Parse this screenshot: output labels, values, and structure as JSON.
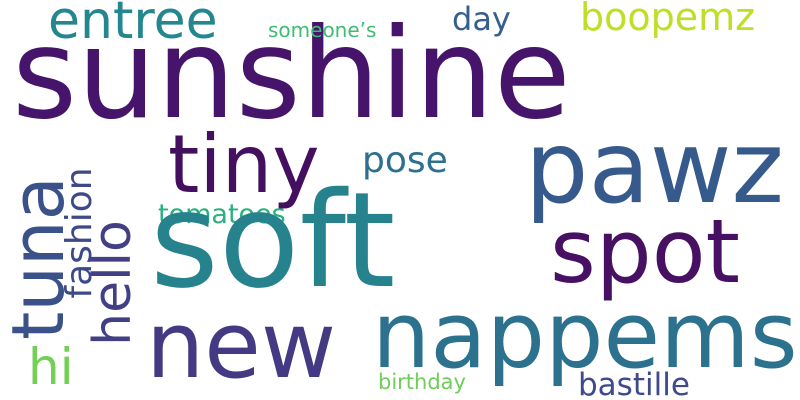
{
  "wordcloud": {
    "words": {
      "sunshine": {
        "text": "sunshine",
        "color": "#46146a"
      },
      "soft": {
        "text": "soft",
        "color": "#26838e"
      },
      "pawz": {
        "text": "pawz",
        "color": "#375a8c"
      },
      "new": {
        "text": "new",
        "color": "#433a83"
      },
      "nappems": {
        "text": "nappems",
        "color": "#2c718e"
      },
      "spot": {
        "text": "spot",
        "color": "#471063"
      },
      "tiny": {
        "text": "tiny",
        "color": "#430f5e"
      },
      "tuna": {
        "text": "tuna",
        "color": "#3b5189"
      },
      "entree": {
        "text": "entree",
        "color": "#24868e"
      },
      "boopemz": {
        "text": "boopemz",
        "color": "#bddf26"
      },
      "day": {
        "text": "day",
        "color": "#35608d"
      },
      "pose": {
        "text": "pose",
        "color": "#2d6f8e"
      },
      "fashion": {
        "text": "fashion",
        "color": "#3e4989"
      },
      "hello": {
        "text": "hello",
        "color": "#423f85"
      },
      "tomatoes": {
        "text": "tomatoes",
        "color": "#2ab07f"
      },
      "someones": {
        "text": "someone’s",
        "color": "#3fbc73"
      },
      "hi": {
        "text": "hi",
        "color": "#73d055"
      },
      "birthday": {
        "text": "birthday",
        "color": "#6ece58"
      },
      "bastille": {
        "text": "bastille",
        "color": "#3e4a89"
      }
    }
  }
}
